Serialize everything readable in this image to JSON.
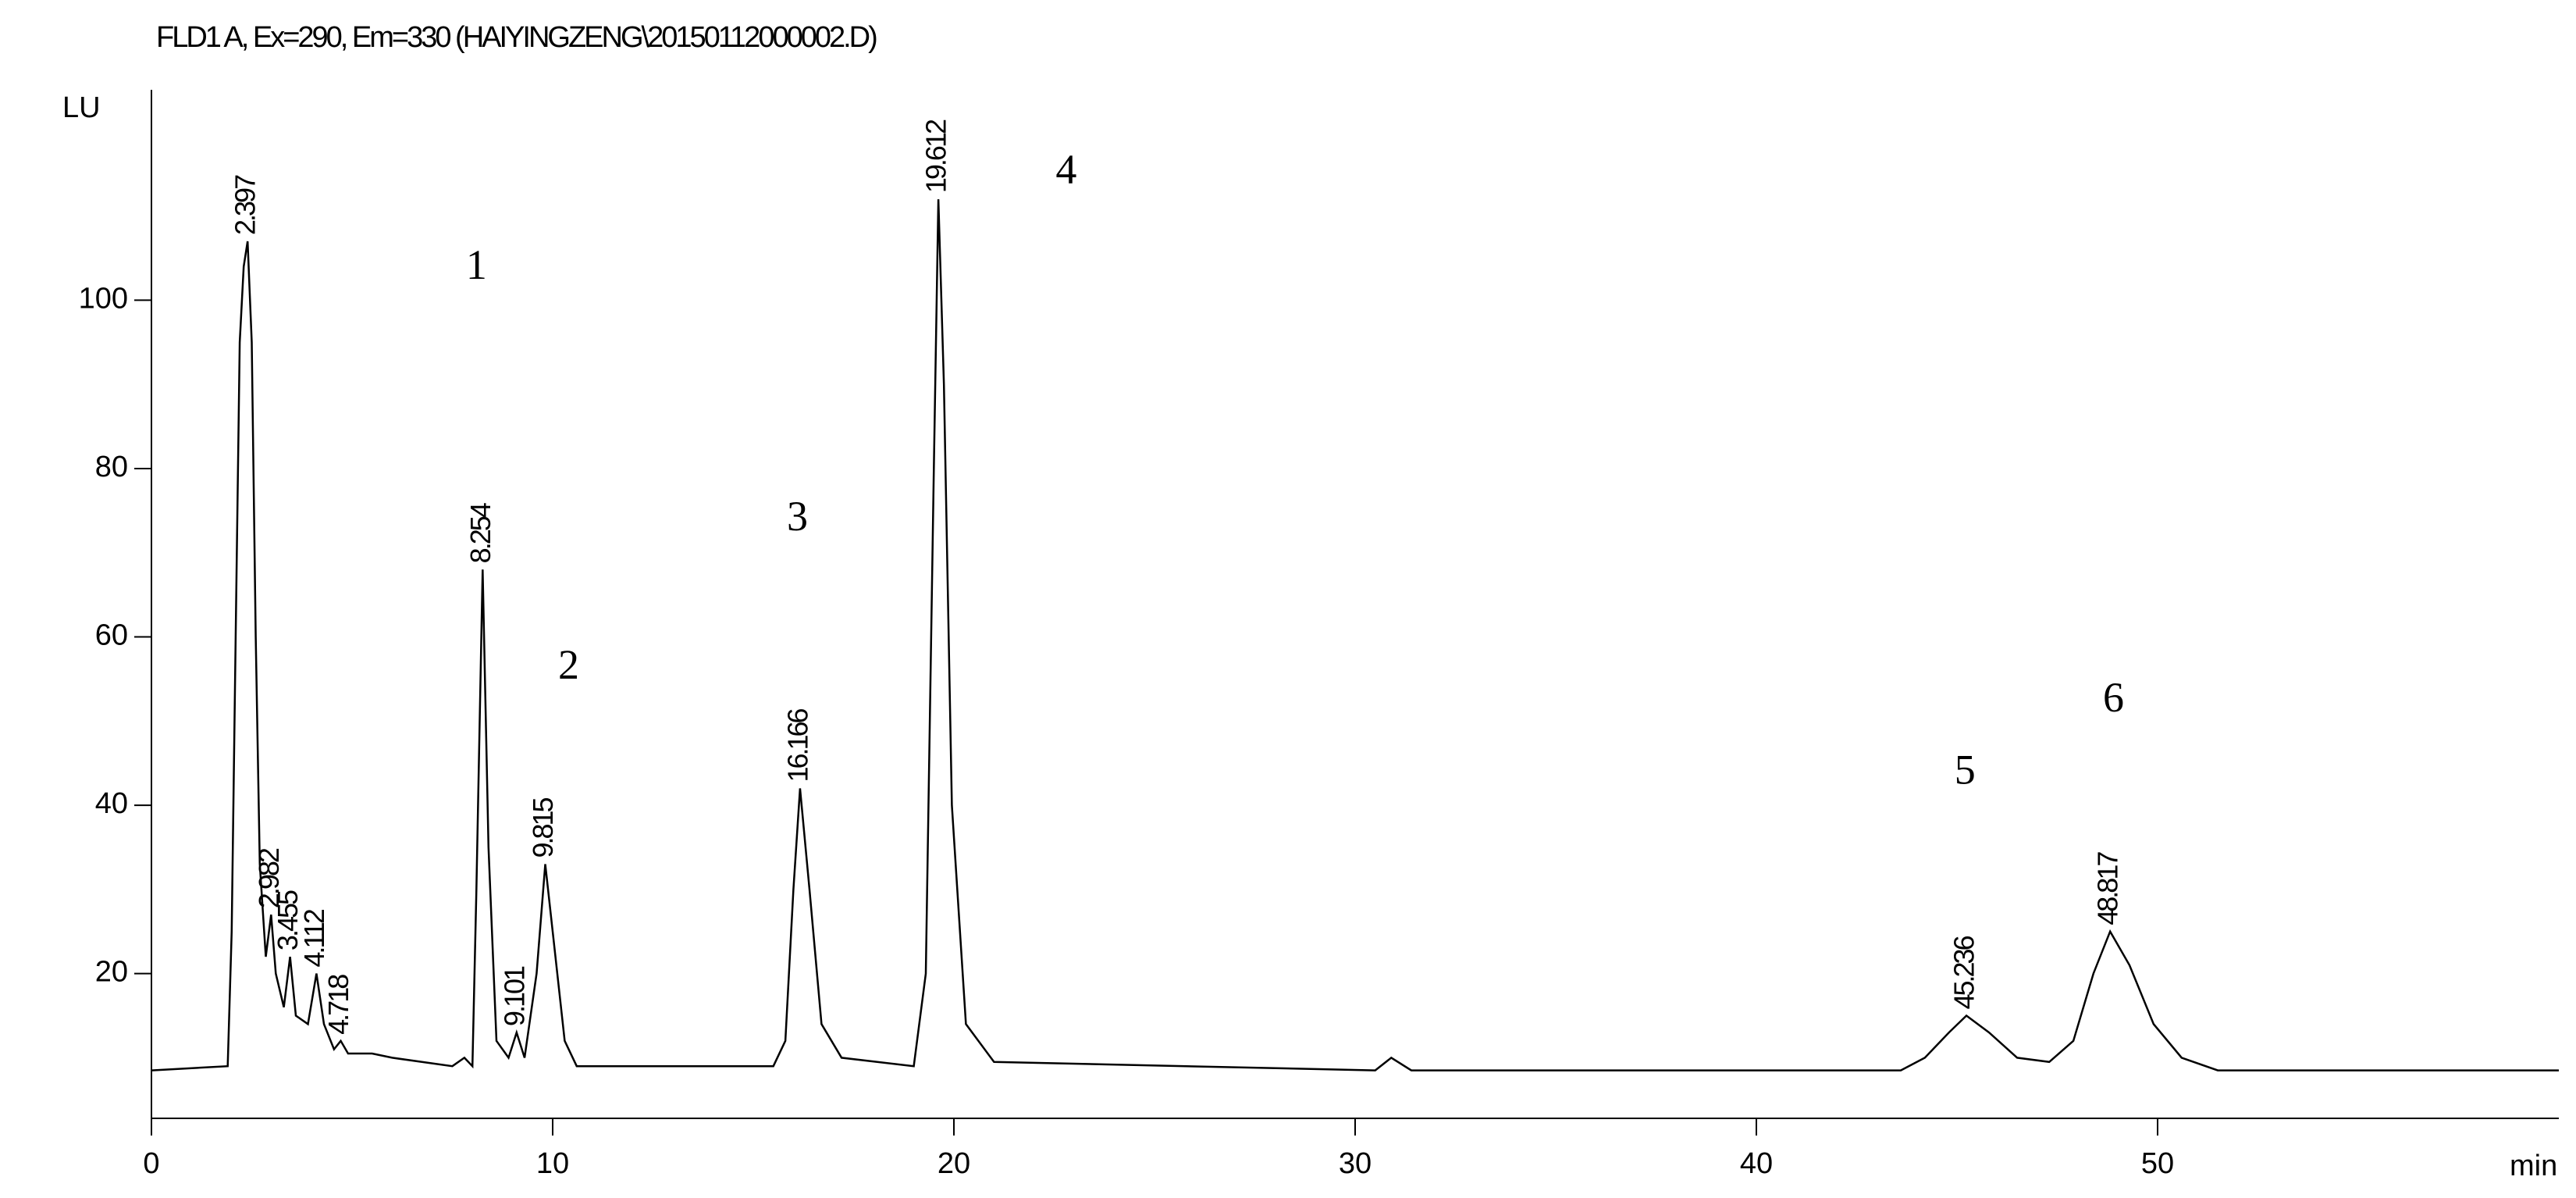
{
  "chart_data": {
    "type": "line",
    "title": "FLD1 A, Ex=290, Em=330 (HAIYINGZENG\\20150112000002.D)",
    "y_label": "LU",
    "x_label": "min",
    "xlim": [
      0,
      60
    ],
    "ylim": [
      2.8,
      125
    ],
    "xticks": [
      0,
      10,
      20,
      30,
      40,
      50
    ],
    "yticks": [
      20,
      40,
      60,
      80,
      100
    ],
    "series": [
      {
        "color": "#000000",
        "x": [
          0,
          1.9,
          2.0,
          2.1,
          2.2,
          2.3,
          2.397,
          2.5,
          2.6,
          2.7,
          2.85,
          2.982,
          3.1,
          3.3,
          3.455,
          3.6,
          3.9,
          4.112,
          4.3,
          4.55,
          4.718,
          4.9,
          5.5,
          6.0,
          7.5,
          7.8,
          8.0,
          8.1,
          8.254,
          8.4,
          8.6,
          8.9,
          9.101,
          9.3,
          9.6,
          9.815,
          10.0,
          10.3,
          10.6,
          15.5,
          15.8,
          16.0,
          16.166,
          16.4,
          16.7,
          17.2,
          19.0,
          19.3,
          19.5,
          19.612,
          19.75,
          19.95,
          20.3,
          21,
          30.5,
          30.9,
          31.4,
          43.6,
          44.2,
          44.8,
          45.236,
          45.8,
          46.5,
          47.3,
          47.9,
          48.4,
          48.817,
          49.3,
          49.9,
          50.6,
          51.5,
          60
        ],
        "values": [
          8.5,
          9,
          25,
          60,
          95,
          104,
          107,
          95,
          60,
          33,
          22,
          27,
          20,
          16,
          22,
          15,
          14,
          20,
          14,
          11,
          12,
          10.5,
          10.5,
          10,
          9,
          10,
          9,
          30,
          68,
          35,
          12,
          10,
          13,
          10,
          20,
          33,
          25,
          12,
          9,
          9,
          12,
          30,
          42,
          30,
          14,
          10,
          9,
          20,
          80,
          112,
          90,
          40,
          14,
          9.5,
          8.5,
          10,
          8.5,
          8.5,
          10,
          13,
          15,
          13,
          10,
          9.5,
          12,
          20,
          25,
          21,
          14,
          10,
          8.5,
          8.5
        ]
      }
    ],
    "peak_labels": [
      {
        "x": 2.397,
        "text": "2.397"
      },
      {
        "x": 2.982,
        "text": "2.982"
      },
      {
        "x": 3.455,
        "text": "3.455"
      },
      {
        "x": 4.112,
        "text": "4.112"
      },
      {
        "x": 4.718,
        "text": "4.718"
      },
      {
        "x": 8.254,
        "text": "8.254"
      },
      {
        "x": 9.101,
        "text": "9.101"
      },
      {
        "x": 9.815,
        "text": "9.815"
      },
      {
        "x": 16.166,
        "text": "16.166"
      },
      {
        "x": 19.612,
        "text": "19.612"
      },
      {
        "x": 45.236,
        "text": "45.236"
      },
      {
        "x": 48.817,
        "text": "48.817"
      }
    ],
    "annotations": [
      {
        "x": 8.1,
        "y": 103.7,
        "text": "1"
      },
      {
        "x": 10.4,
        "y": 56.2,
        "text": "2"
      },
      {
        "x": 16.1,
        "y": 73.8,
        "text": "3"
      },
      {
        "x": 22.8,
        "y": 115,
        "text": "4"
      },
      {
        "x": 45.2,
        "y": 43.7,
        "text": "5"
      },
      {
        "x": 48.9,
        "y": 52.3,
        "text": "6"
      }
    ]
  }
}
